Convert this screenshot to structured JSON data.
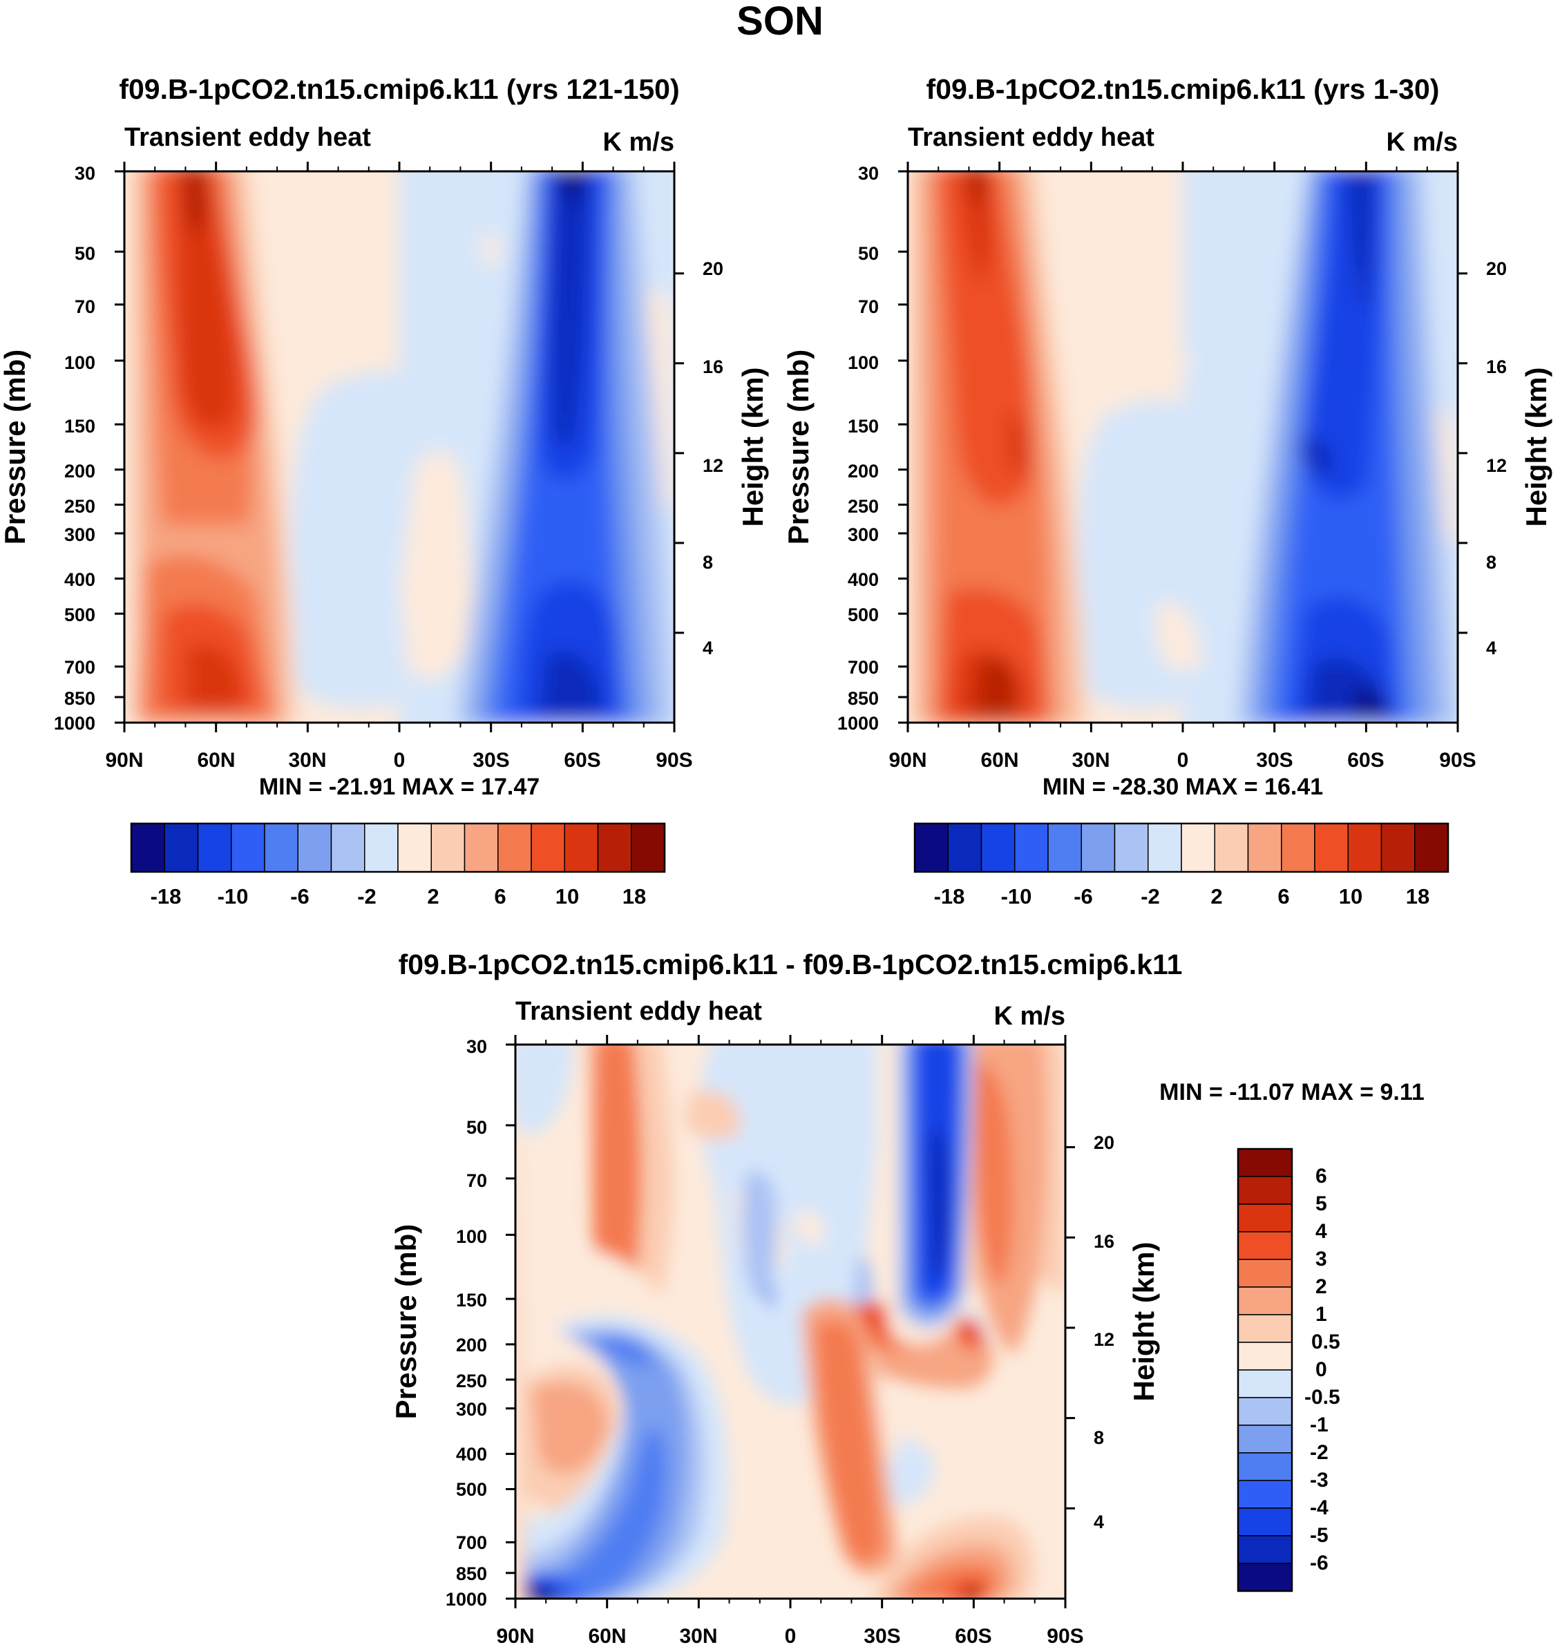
{
  "figure_title": "SON",
  "chart_data": [
    {
      "type": "heatmap",
      "title": "f09.B-1pCO2.tn15.cmip6.k11 (yrs 121-150)",
      "subtitle_left": "Transient eddy heat",
      "subtitle_right": "K m/s",
      "xlabel": "",
      "ylabel": "Pressure (mb)",
      "ylabel_right": "Height (km)",
      "x_ticks": [
        "90N",
        "60N",
        "30N",
        "0",
        "30S",
        "60S",
        "90S"
      ],
      "y_ticks": [
        "30",
        "50",
        "70",
        "100",
        "150",
        "200",
        "250",
        "300",
        "400",
        "500",
        "700",
        "850",
        "1000"
      ],
      "y_ticks_right": [
        "20",
        "16",
        "12",
        "8",
        "4"
      ],
      "xlim": [
        90,
        -90
      ],
      "ylim": [
        1000,
        30
      ],
      "stats": "MIN = -21.91  MAX =  17.47",
      "extremes": {
        "min": -21.91,
        "max": 17.47
      },
      "colorbar": {
        "orientation": "horizontal",
        "tick_labels": [
          "-18",
          "-10",
          "-6",
          "-2",
          "2",
          "6",
          "10",
          "18"
        ],
        "colors": [
          "#0a0a82",
          "#0a2abd",
          "#1643e6",
          "#2e5ef5",
          "#4f7ef2",
          "#7c9ff0",
          "#abc2f4",
          "#d6e6fa",
          "#fdeadb",
          "#fbcdb3",
          "#f7a582",
          "#f47a50",
          "#ee4f25",
          "#da3510",
          "#b72006",
          "#870a02"
        ]
      }
    },
    {
      "type": "heatmap",
      "title": "f09.B-1pCO2.tn15.cmip6.k11 (yrs 1-30)",
      "subtitle_left": "Transient eddy heat",
      "subtitle_right": "K m/s",
      "xlabel": "",
      "ylabel": "Pressure (mb)",
      "ylabel_right": "Height (km)",
      "x_ticks": [
        "90N",
        "60N",
        "30N",
        "0",
        "30S",
        "60S",
        "90S"
      ],
      "y_ticks": [
        "30",
        "50",
        "70",
        "100",
        "150",
        "200",
        "250",
        "300",
        "400",
        "500",
        "700",
        "850",
        "1000"
      ],
      "y_ticks_right": [
        "20",
        "16",
        "12",
        "8",
        "4"
      ],
      "xlim": [
        90,
        -90
      ],
      "ylim": [
        1000,
        30
      ],
      "stats": "MIN = -28.30  MAX =  16.41",
      "extremes": {
        "min": -28.3,
        "max": 16.41
      },
      "colorbar": {
        "orientation": "horizontal",
        "tick_labels": [
          "-18",
          "-10",
          "-6",
          "-2",
          "2",
          "6",
          "10",
          "18"
        ],
        "colors": [
          "#0a0a82",
          "#0a2abd",
          "#1643e6",
          "#2e5ef5",
          "#4f7ef2",
          "#7c9ff0",
          "#abc2f4",
          "#d6e6fa",
          "#fdeadb",
          "#fbcdb3",
          "#f7a582",
          "#f47a50",
          "#ee4f25",
          "#da3510",
          "#b72006",
          "#870a02"
        ]
      }
    },
    {
      "type": "heatmap",
      "title": "f09.B-1pCO2.tn15.cmip6.k11 - f09.B-1pCO2.tn15.cmip6.k11",
      "subtitle_left": "Transient eddy heat",
      "subtitle_right": "K m/s",
      "xlabel": "",
      "ylabel": "Pressure (mb)",
      "ylabel_right": "Height (km)",
      "x_ticks": [
        "90N",
        "60N",
        "30N",
        "0",
        "30S",
        "60S",
        "90S"
      ],
      "y_ticks": [
        "30",
        "50",
        "70",
        "100",
        "150",
        "200",
        "250",
        "300",
        "400",
        "500",
        "700",
        "850",
        "1000"
      ],
      "y_ticks_right": [
        "20",
        "16",
        "12",
        "8",
        "4"
      ],
      "xlim": [
        90,
        -90
      ],
      "ylim": [
        1000,
        30
      ],
      "stats": "MIN = -11.07  MAX =   9.11",
      "extremes": {
        "min": -11.07,
        "max": 9.11
      },
      "colorbar": {
        "orientation": "vertical",
        "tick_labels": [
          "6",
          "5",
          "4",
          "3",
          "2",
          "1",
          "0.5",
          "0",
          "-0.5",
          "-1",
          "-2",
          "-3",
          "-4",
          "-5",
          "-6"
        ],
        "colors": [
          "#870a02",
          "#b72006",
          "#da3510",
          "#ee4f25",
          "#f47a50",
          "#f7a582",
          "#fbcdb3",
          "#fdeadb",
          "#d6e6fa",
          "#abc2f4",
          "#7c9ff0",
          "#4f7ef2",
          "#2e5ef5",
          "#1643e6",
          "#0a2abd",
          "#0a0a82"
        ]
      }
    }
  ]
}
